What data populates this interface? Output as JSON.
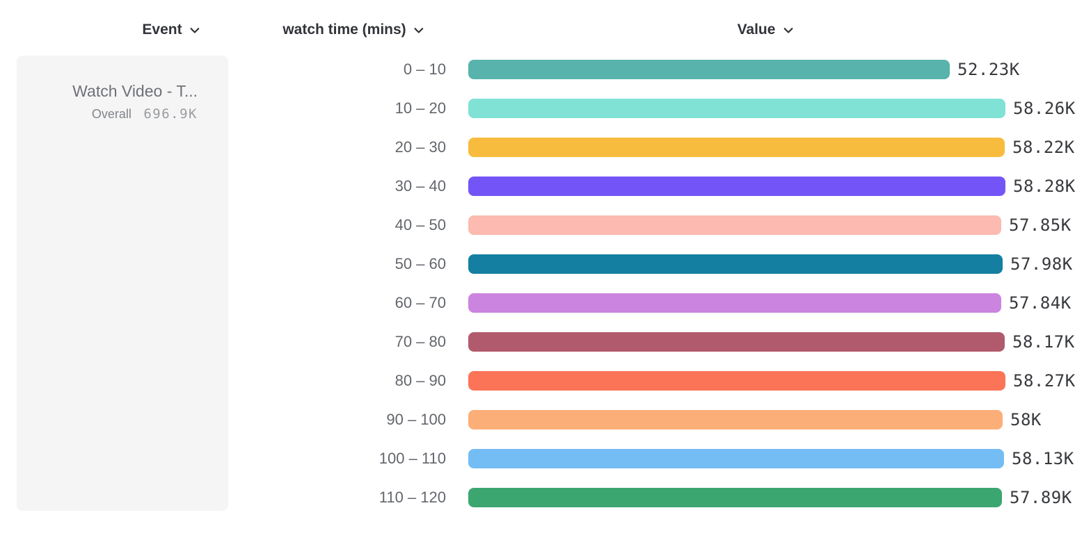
{
  "header": {
    "event": {
      "label": "Event"
    },
    "dimension": {
      "label": "watch time (mins)"
    },
    "value": {
      "label": "Value"
    }
  },
  "event_card": {
    "title": "Watch Video - T...",
    "overall_label": "Overall",
    "overall_value": "696.9K"
  },
  "chart_data": {
    "type": "bar",
    "orientation": "horizontal",
    "title": "",
    "xlabel": "Value",
    "ylabel": "watch time (mins)",
    "xlim": [
      0,
      58280
    ],
    "grid": false,
    "legend": false,
    "categories": [
      "0 – 10",
      "10 – 20",
      "20 – 30",
      "30 – 40",
      "40 – 50",
      "50 – 60",
      "60 – 70",
      "70 – 80",
      "80 – 90",
      "90 – 100",
      "100 – 110",
      "110 – 120"
    ],
    "values": [
      52230,
      58260,
      58220,
      58280,
      57850,
      57980,
      57840,
      58170,
      58270,
      58000,
      58130,
      57890
    ],
    "value_labels": [
      "52.23K",
      "58.26K",
      "58.22K",
      "58.28K",
      "57.85K",
      "57.98K",
      "57.84K",
      "58.17K",
      "58.27K",
      "58K",
      "58.13K",
      "57.89K"
    ],
    "bar_colors": [
      "#57b3ab",
      "#7fe2d5",
      "#f7bc3d",
      "#7355f7",
      "#fcbab1",
      "#147fa0",
      "#cb84e0",
      "#b25a6d",
      "#fc7458",
      "#fcae78",
      "#74bdf4",
      "#3ca670"
    ]
  }
}
